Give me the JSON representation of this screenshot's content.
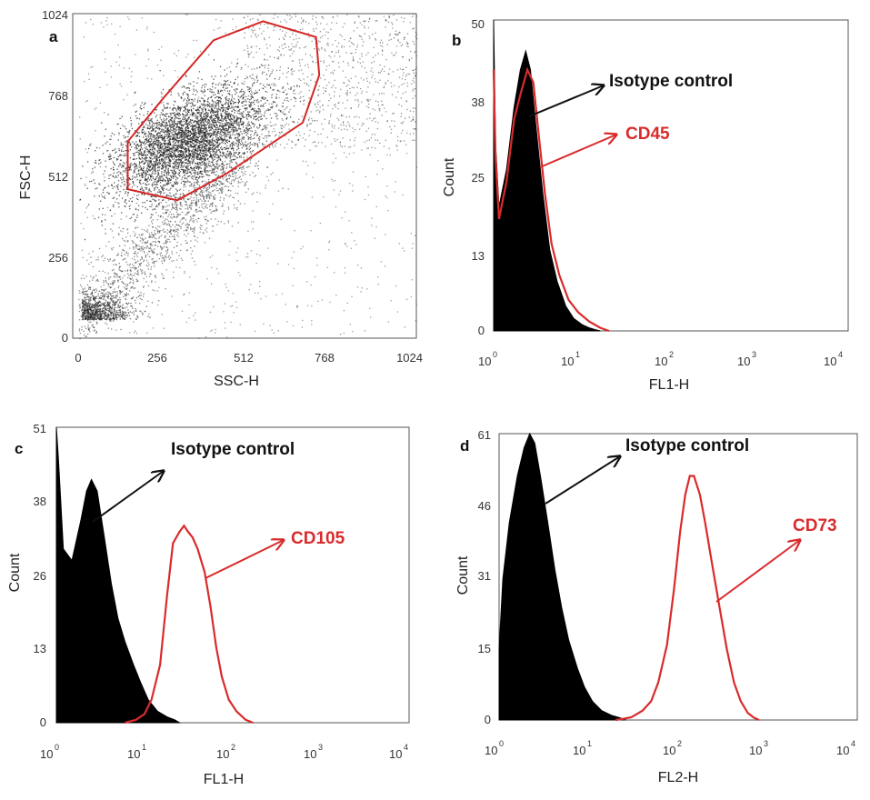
{
  "colors": {
    "isotype": "#000000",
    "marker": "#d92b2b",
    "gate": "#d62525",
    "annotation_black": "#111111",
    "dots": "#222222"
  },
  "chart_data": [
    {
      "id": "a",
      "type": "scatter",
      "panel_label": "a",
      "xlabel": "SSC-H",
      "ylabel": "FSC-H",
      "xlim": [
        0,
        1024
      ],
      "ylim": [
        0,
        1024
      ],
      "xticks": [
        "0",
        "256",
        "512",
        "768",
        "1024"
      ],
      "yticks": [
        "0",
        "256",
        "512",
        "768",
        "1024"
      ],
      "point_cloud": {
        "center": [
          330,
          620
        ],
        "spread": [
          95,
          55
        ],
        "count": 4200
      },
      "gate": [
        [
          150,
          470
        ],
        [
          300,
          435
        ],
        [
          450,
          520
        ],
        [
          680,
          680
        ],
        [
          730,
          830
        ],
        [
          720,
          950
        ],
        [
          560,
          1000
        ],
        [
          410,
          940
        ],
        [
          260,
          760
        ],
        [
          150,
          620
        ]
      ]
    },
    {
      "id": "b",
      "type": "area",
      "panel_label": "b",
      "xlabel": "FL1-H",
      "ylabel": "Count",
      "xscale": "log",
      "xlim": [
        1,
        10000
      ],
      "ylim": [
        0,
        50
      ],
      "xticks": [
        {
          "base": "10",
          "exp": "0"
        },
        {
          "base": "10",
          "exp": "1"
        },
        {
          "base": "10",
          "exp": "2"
        },
        {
          "base": "10",
          "exp": "3"
        },
        {
          "base": "10",
          "exp": "4"
        }
      ],
      "yticks": [
        "0",
        "13",
        "25",
        "38",
        "50"
      ],
      "series": [
        {
          "name": "Isotype control",
          "style": "filled",
          "color": "#000000",
          "x": [
            1,
            1.05,
            1.15,
            1.4,
            1.7,
            2.0,
            2.3,
            2.6,
            3.0,
            3.6,
            4.3,
            5.2,
            6.5,
            8,
            10,
            12,
            14,
            16
          ],
          "values": [
            50,
            30,
            20,
            26,
            36,
            42,
            45,
            42,
            33,
            22,
            13,
            8,
            4,
            2,
            1,
            0.5,
            0.2,
            0
          ]
        },
        {
          "name": "CD45",
          "style": "line",
          "color": "#d92b2b",
          "x": [
            1,
            1.05,
            1.15,
            1.4,
            1.7,
            2.0,
            2.4,
            2.8,
            3.2,
            3.8,
            4.5,
            5.5,
            7,
            9,
            12,
            16,
            20
          ],
          "values": [
            42,
            28,
            18,
            24,
            34,
            38,
            42,
            40,
            32,
            22,
            14,
            9,
            5,
            3,
            1.5,
            0.5,
            0
          ]
        }
      ],
      "annotations": [
        {
          "text": "Isotype control",
          "color": "#111111"
        },
        {
          "text": "CD45",
          "color": "#d92b2b"
        }
      ]
    },
    {
      "id": "c",
      "type": "area",
      "panel_label": "c",
      "xlabel": "FL1-H",
      "ylabel": "Count",
      "xscale": "log",
      "xlim": [
        1,
        10000
      ],
      "ylim": [
        0,
        51
      ],
      "xticks": [
        {
          "base": "10",
          "exp": "0"
        },
        {
          "base": "10",
          "exp": "1"
        },
        {
          "base": "10",
          "exp": "2"
        },
        {
          "base": "10",
          "exp": "3"
        },
        {
          "base": "10",
          "exp": "4"
        }
      ],
      "yticks": [
        "0",
        "13",
        "26",
        "38",
        "51"
      ],
      "series": [
        {
          "name": "Isotype control",
          "style": "filled",
          "color": "#000000",
          "x": [
            1,
            1.05,
            1.2,
            1.5,
            1.9,
            2.2,
            2.5,
            2.9,
            3.5,
            4.2,
            5,
            6,
            7.5,
            9,
            11,
            14,
            18,
            22,
            25
          ],
          "values": [
            51,
            46,
            30,
            28,
            35,
            40,
            42,
            40,
            32,
            24,
            18,
            14,
            10,
            7,
            4,
            2,
            1,
            0.5,
            0
          ]
        },
        {
          "name": "CD105",
          "style": "line",
          "color": "#d92b2b",
          "x": [
            6,
            8,
            10,
            12,
            15,
            18,
            21,
            25,
            28,
            31,
            35,
            40,
            48,
            56,
            65,
            75,
            90,
            110,
            140,
            170
          ],
          "values": [
            0,
            0.5,
            1.5,
            4,
            10,
            22,
            31,
            33,
            34,
            33,
            32,
            30,
            26,
            20,
            13,
            8,
            4,
            2,
            0.5,
            0
          ]
        }
      ],
      "annotations": [
        {
          "text": "Isotype control",
          "color": "#111111"
        },
        {
          "text": "CD105",
          "color": "#d92b2b"
        }
      ]
    },
    {
      "id": "d",
      "type": "area",
      "panel_label": "d",
      "xlabel": "FL2-H",
      "ylabel": "Count",
      "xscale": "log",
      "xlim": [
        1,
        10000
      ],
      "ylim": [
        0,
        61
      ],
      "xticks": [
        {
          "base": "10",
          "exp": "0"
        },
        {
          "base": "10",
          "exp": "1"
        },
        {
          "base": "10",
          "exp": "2"
        },
        {
          "base": "10",
          "exp": "3"
        },
        {
          "base": "10",
          "exp": "4"
        }
      ],
      "yticks": [
        "0",
        "15",
        "31",
        "46",
        "61"
      ],
      "series": [
        {
          "name": "Isotype control",
          "style": "filled",
          "color": "#000000",
          "x": [
            1,
            1.1,
            1.3,
            1.6,
            1.9,
            2.2,
            2.5,
            2.9,
            3.5,
            4.2,
            5,
            6,
            7.5,
            9,
            11,
            14,
            18,
            22,
            26
          ],
          "values": [
            15,
            30,
            42,
            52,
            58,
            61,
            59,
            52,
            42,
            32,
            24,
            17,
            11,
            7,
            4,
            2,
            1,
            0.5,
            0
          ]
        },
        {
          "name": "CD73",
          "style": "line",
          "color": "#d92b2b",
          "x": [
            20,
            25,
            30,
            40,
            50,
            60,
            75,
            90,
            105,
            120,
            135,
            150,
            175,
            200,
            240,
            290,
            350,
            420,
            500,
            600,
            700,
            800
          ],
          "values": [
            0,
            0.3,
            0.6,
            2,
            4,
            8,
            16,
            28,
            40,
            48,
            52,
            52,
            48,
            42,
            33,
            24,
            15,
            8,
            4,
            1.5,
            0.5,
            0
          ]
        }
      ],
      "annotations": [
        {
          "text": "Isotype control",
          "color": "#111111"
        },
        {
          "text": "CD73",
          "color": "#d92b2b"
        }
      ]
    }
  ]
}
